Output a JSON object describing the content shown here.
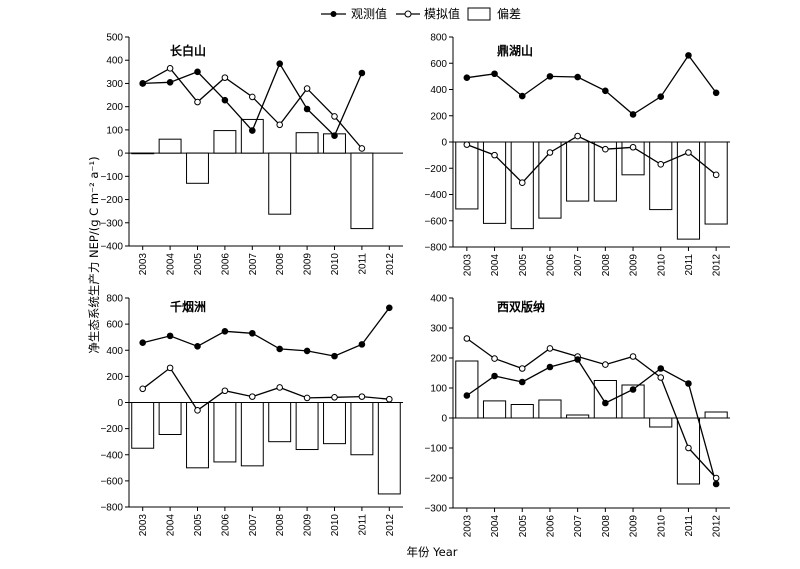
{
  "legend": {
    "observed": "观测值",
    "simulated": "模拟值",
    "bias": "偏差"
  },
  "xlabel": "年份 Year",
  "ylabel": "净生态系统生产力 NEP/(g C m⁻² a⁻¹)",
  "chart_data": [
    {
      "type": "line",
      "title": "长白山",
      "categories": [
        "2003",
        "2004",
        "2005",
        "2006",
        "2007",
        "2008",
        "2009",
        "2010",
        "2011",
        "2012"
      ],
      "ylim": [
        -400,
        500
      ],
      "yticks": [
        -400,
        -300,
        -200,
        -100,
        0,
        100,
        200,
        300,
        400,
        500
      ],
      "series": [
        {
          "name": "观测值",
          "values": [
            300,
            305,
            350,
            228,
            97,
            385,
            190,
            75,
            345,
            null
          ]
        },
        {
          "name": "模拟值",
          "values": [
            300,
            365,
            220,
            325,
            242,
            122,
            278,
            158,
            20,
            null
          ]
        },
        {
          "name": "偏差",
          "values": [
            0,
            60,
            -130,
            97,
            145,
            -263,
            88,
            83,
            -325,
            null
          ]
        }
      ]
    },
    {
      "type": "line",
      "title": "鼎湖山",
      "categories": [
        "2003",
        "2004",
        "2005",
        "2006",
        "2007",
        "2008",
        "2009",
        "2010",
        "2011",
        "2012"
      ],
      "ylim": [
        -800,
        800
      ],
      "yticks": [
        -800,
        -600,
        -400,
        -200,
        0,
        200,
        400,
        600,
        800
      ],
      "series": [
        {
          "name": "观测值",
          "values": [
            490,
            520,
            350,
            500,
            495,
            390,
            210,
            345,
            660,
            375
          ]
        },
        {
          "name": "模拟值",
          "values": [
            -20,
            -100,
            -310,
            -80,
            45,
            -55,
            -40,
            -170,
            -80,
            -250
          ]
        },
        {
          "name": "偏差",
          "values": [
            -510,
            -620,
            -660,
            -580,
            -450,
            -450,
            -250,
            -515,
            -740,
            -625
          ]
        }
      ]
    },
    {
      "type": "line",
      "title": "千烟洲",
      "categories": [
        "2003",
        "2004",
        "2005",
        "2006",
        "2007",
        "2008",
        "2009",
        "2010",
        "2011",
        "2012"
      ],
      "ylim": [
        -800,
        800
      ],
      "yticks": [
        -800,
        -600,
        -400,
        -200,
        0,
        200,
        400,
        600,
        800
      ],
      "series": [
        {
          "name": "观测值",
          "values": [
            458,
            510,
            430,
            545,
            530,
            410,
            395,
            355,
            445,
            725
          ]
        },
        {
          "name": "模拟值",
          "values": [
            105,
            265,
            -60,
            90,
            45,
            115,
            35,
            40,
            45,
            25
          ]
        },
        {
          "name": "偏差",
          "values": [
            -350,
            -245,
            -500,
            -455,
            -485,
            -300,
            -360,
            -315,
            -400,
            -700
          ]
        }
      ]
    },
    {
      "type": "line",
      "title": "西双版纳",
      "categories": [
        "2003",
        "2004",
        "2005",
        "2006",
        "2007",
        "2008",
        "2009",
        "2010",
        "2011",
        "2012"
      ],
      "ylim": [
        -300,
        400
      ],
      "yticks": [
        -300,
        -200,
        -100,
        0,
        100,
        200,
        300,
        400
      ],
      "series": [
        {
          "name": "观测值",
          "values": [
            75,
            140,
            120,
            170,
            195,
            50,
            95,
            165,
            115,
            -220
          ]
        },
        {
          "name": "模拟值",
          "values": [
            265,
            198,
            165,
            232,
            205,
            178,
            205,
            135,
            -100,
            -200
          ]
        },
        {
          "name": "偏差",
          "values": [
            190,
            57,
            45,
            60,
            10,
            125,
            110,
            -30,
            -220,
            20
          ]
        }
      ]
    }
  ]
}
